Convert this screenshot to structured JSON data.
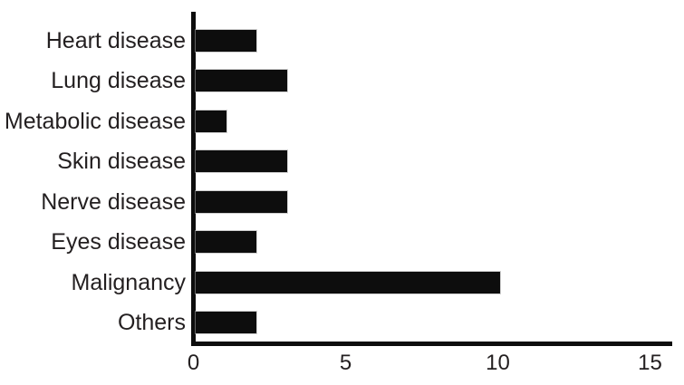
{
  "chart_data": {
    "type": "bar",
    "orientation": "horizontal",
    "title": "",
    "xlabel": "",
    "ylabel": "",
    "categories": [
      "Heart disease",
      "Lung disease",
      "Metabolic disease",
      "Skin disease",
      "Nerve disease",
      "Eyes disease",
      "Malignancy",
      "Others"
    ],
    "values": [
      2,
      3,
      1,
      3,
      3,
      2,
      10,
      2
    ],
    "x_ticks": [
      "0",
      "5",
      "10",
      "15"
    ],
    "x_tick_values": [
      0,
      5,
      10,
      15
    ],
    "xlim": [
      0,
      15
    ],
    "grid": false,
    "legend_position": "none",
    "colors": {
      "bar": "#0d0d0d",
      "axis": "#0d0d0d",
      "label_text": "#231f20",
      "tick_text": "#231f20",
      "background": "#ffffff"
    }
  }
}
